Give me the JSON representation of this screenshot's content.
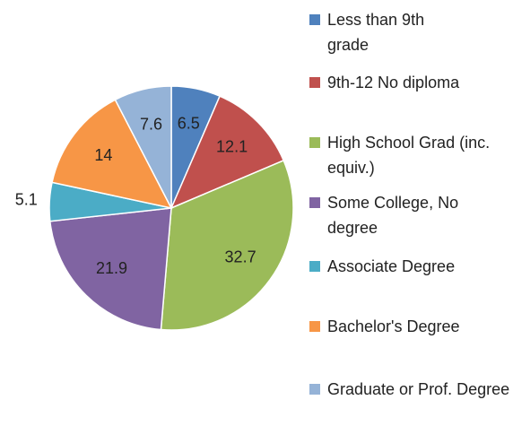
{
  "chart_data": {
    "type": "pie",
    "categories": [
      "Less than 9th grade",
      "9th-12 No diploma",
      "High School Grad (inc. equiv.)",
      "Some College, No degree",
      "Associate Degree",
      "Bachelor's Degree",
      "Graduate or Prof. Degree"
    ],
    "values": [
      6.5,
      12.1,
      32.7,
      21.9,
      5.1,
      14,
      7.6
    ],
    "colors": [
      "#4f81bd",
      "#c0504d",
      "#9bbb59",
      "#8064a2",
      "#4bacc6",
      "#f79646",
      "#95b3d7"
    ],
    "legend": "right"
  }
}
